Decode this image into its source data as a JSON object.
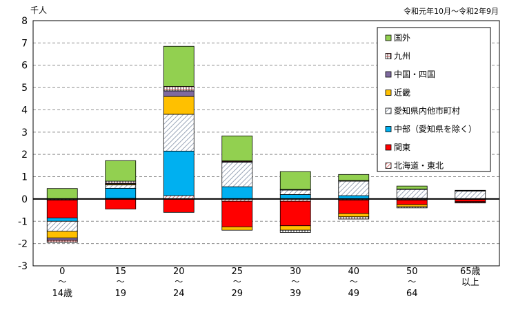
{
  "chart_data": {
    "type": "bar",
    "stacked": true,
    "title": "",
    "unit_label": "千人",
    "period_label": "令和元年10月～令和2年9月",
    "ylim": [
      -3,
      8
    ],
    "yticks": [
      -3,
      -2,
      -1,
      0,
      1,
      2,
      3,
      4,
      5,
      6,
      7,
      8
    ],
    "grid": true,
    "legend_position": "top-right",
    "categories": [
      {
        "top": "0",
        "tilde": "～",
        "bottom": "14歳"
      },
      {
        "top": "15",
        "tilde": "～",
        "bottom": "19"
      },
      {
        "top": "20",
        "tilde": "～",
        "bottom": "24"
      },
      {
        "top": "25",
        "tilde": "～",
        "bottom": "29"
      },
      {
        "top": "30",
        "tilde": "～",
        "bottom": "39"
      },
      {
        "top": "40",
        "tilde": "～",
        "bottom": "49"
      },
      {
        "top": "50",
        "tilde": "～",
        "bottom": "64"
      },
      {
        "top": "65歳",
        "tilde": "",
        "bottom": "以上"
      }
    ],
    "series": [
      {
        "name": "北海道・東北",
        "pattern": "diag-red",
        "color": "#ff0000",
        "values": [
          -0.05,
          0.03,
          0.15,
          -0.1,
          -0.1,
          -0.05,
          -0.05,
          -0.02
        ]
      },
      {
        "name": "関東",
        "pattern": "solid",
        "color": "#ff0000",
        "values": [
          -0.8,
          -0.45,
          -0.6,
          -1.15,
          -1.1,
          -0.6,
          -0.2,
          -0.1
        ]
      },
      {
        "name": "中部（愛知県を除く）",
        "pattern": "solid",
        "color": "#00b0f0",
        "values": [
          -0.15,
          0.45,
          2.0,
          0.55,
          0.2,
          0.15,
          0.03,
          0.01
        ]
      },
      {
        "name": "愛知県内他市町村",
        "pattern": "diag-gray",
        "color": "#a6a6a6",
        "values": [
          -0.45,
          0.15,
          1.65,
          1.1,
          0.2,
          0.65,
          0.4,
          0.35
        ]
      },
      {
        "name": "近畿",
        "pattern": "solid",
        "color": "#ffc000",
        "values": [
          -0.3,
          0.04,
          0.8,
          -0.15,
          -0.2,
          -0.15,
          -0.1,
          -0.02
        ]
      },
      {
        "name": "中国・四国",
        "pattern": "solid",
        "color": "#7f6a9f",
        "values": [
          -0.1,
          0.03,
          0.25,
          0.03,
          0.03,
          0.03,
          0.02,
          0.01
        ]
      },
      {
        "name": "九州",
        "pattern": "grid-red",
        "color": "#ffffff",
        "values": [
          -0.1,
          0.1,
          0.2,
          0.03,
          -0.1,
          -0.1,
          -0.05,
          -0.04
        ]
      },
      {
        "name": "国外",
        "pattern": "solid",
        "color": "#92d050",
        "values": [
          0.47,
          0.92,
          1.8,
          1.12,
          0.8,
          0.27,
          0.13,
          0.02
        ]
      }
    ],
    "legend_order": [
      "国外",
      "九州",
      "中国・四国",
      "近畿",
      "愛知県内他市町村",
      "中部（愛知県を除く）",
      "関東",
      "北海道・東北"
    ]
  }
}
